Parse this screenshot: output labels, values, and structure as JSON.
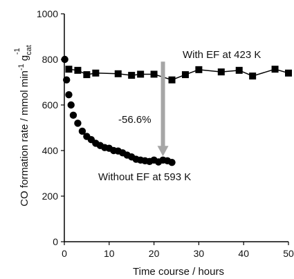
{
  "chart_data": {
    "type": "scatter",
    "xlabel": "Time course / hours",
    "ylabel": {
      "main": "CO formation rate / mmol min",
      "sup1": "-1",
      "g": " g",
      "sub": "cat",
      "sup2": "-1"
    },
    "xlim": [
      0,
      50
    ],
    "ylim": [
      0,
      1000
    ],
    "xticks": [
      0,
      10,
      20,
      30,
      40,
      50
    ],
    "yticks": [
      0,
      200,
      400,
      600,
      800,
      1000
    ],
    "grid": false,
    "series": [
      {
        "name": "With EF at 423 K",
        "marker": "square",
        "line": true,
        "color": "#000000",
        "x": [
          1,
          3,
          5,
          7,
          12,
          15,
          17,
          20,
          24,
          27,
          30,
          35,
          39,
          42,
          47,
          50
        ],
        "y": [
          757,
          752,
          733,
          740,
          737,
          730,
          735,
          735,
          710,
          733,
          755,
          745,
          752,
          727,
          757,
          740
        ]
      },
      {
        "name": "Without EF at 593 K",
        "marker": "circle",
        "line": false,
        "color": "#000000",
        "x": [
          0.1,
          0.5,
          1,
          1.5,
          2,
          3,
          4,
          5,
          6,
          7,
          8,
          9,
          10,
          11,
          12,
          13,
          14,
          15,
          16,
          17,
          18,
          19,
          20,
          21,
          22,
          23,
          24
        ],
        "y": [
          800,
          710,
          645,
          600,
          555,
          520,
          485,
          462,
          448,
          432,
          422,
          413,
          410,
          400,
          398,
          390,
          380,
          372,
          362,
          358,
          355,
          352,
          358,
          350,
          358,
          355,
          348
        ]
      }
    ],
    "annotations": [
      {
        "text": "-56.6%",
        "type": "arrow",
        "x": 22,
        "y_from": 790,
        "y_to": 375,
        "color": "#a6a6a6"
      }
    ]
  }
}
